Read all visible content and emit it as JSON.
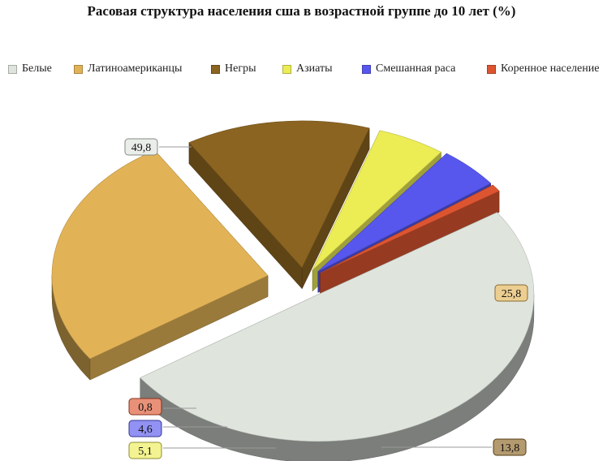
{
  "chart_data": {
    "type": "pie",
    "title": "Расовая структура населения сша в возрастной группе до 10 лет (%)",
    "legend_position": "top",
    "three_d": true,
    "exploded": true,
    "slices": [
      {
        "name": "Белые",
        "value": 49.8,
        "label": "49,8",
        "color": "#dfe5dd"
      },
      {
        "name": "Латиноамериканцы",
        "value": 25.8,
        "label": "25,8",
        "color": "#e2b356"
      },
      {
        "name": "Негры",
        "value": 13.8,
        "label": "13,8",
        "color": "#8b6421"
      },
      {
        "name": "Азиаты",
        "value": 5.1,
        "label": "5,1",
        "color": "#ecec55"
      },
      {
        "name": "Смешанная раса",
        "value": 4.6,
        "label": "4,6",
        "color": "#5757ee"
      },
      {
        "name": "Коренное население",
        "value": 0.8,
        "label": "0,8",
        "color": "#dd5530"
      }
    ]
  }
}
